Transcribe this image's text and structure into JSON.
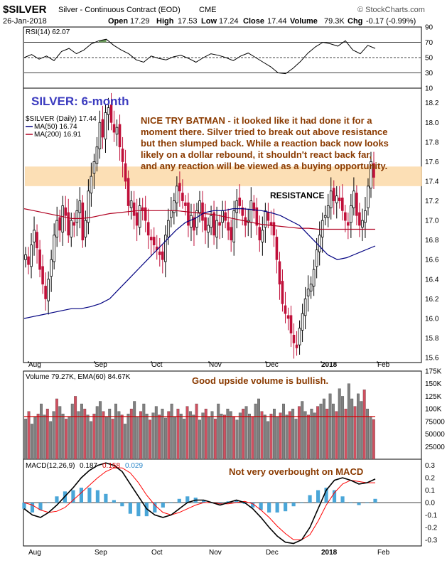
{
  "header": {
    "symbol": "$SILVER",
    "name": "Silver - Continuous Contract (EOD)",
    "exchange": "CME",
    "date": "26-Jan-2018",
    "open_label": "Open",
    "open": "17.29",
    "high_label": "High",
    "high": "17.53",
    "low_label": "Low",
    "low": "17.24",
    "close_label": "Close",
    "close": "17.44",
    "volume_label": "Volume",
    "volume": "79.3K",
    "chg_label": "Chg",
    "chg": "-0.17 (-0.99%)",
    "watermark": "© StockCharts.com"
  },
  "rsi_panel": {
    "label": "RSI(14) 62.07",
    "ticks": [
      "90",
      "70",
      "50",
      "30",
      "10"
    ]
  },
  "price_panel": {
    "big_title": "SILVER: 6-month",
    "legend_main": "$SILVER (Daily) 17.44",
    "legend_ma50": "MA(50) 16.74",
    "legend_ma200": "MA(200) 16.91",
    "annotation": [
      "NICE TRY BATMAN - it looked like it had done it for a",
      "moment there. Silver tried to break out above resistance",
      "but then slumped back. While a reaction back now looks",
      "likely on a dollar rebound, it shouldn't react back far,",
      "and any reaction will be viewed as a buying opportunity."
    ],
    "resistance_label": "RESISTANCE",
    "ticks": [
      "18.2",
      "18.0",
      "17.8",
      "17.6",
      "17.4",
      "17.2",
      "17.0",
      "16.8",
      "16.6",
      "16.4",
      "16.2",
      "16.0",
      "15.8",
      "15.6"
    ]
  },
  "volume_panel": {
    "label": "Volume 79.27K, EMA(60) 84.67K",
    "annotation": "Good upside volume is bullish.",
    "ticks": [
      "175K",
      "150K",
      "125K",
      "100K",
      "75000",
      "50000",
      "25000"
    ]
  },
  "macd_panel": {
    "label_prefix": "MACD(12,26,9)",
    "macd_value": "0.187",
    "signal_value": "0.158",
    "hist_value": "0.029",
    "annotation": "Not very overbought on MACD",
    "ticks": [
      "0.3",
      "0.2",
      "0.1",
      "0.0",
      "-0.1",
      "-0.2",
      "-0.3"
    ]
  },
  "x_axis": {
    "labels": [
      "Aug",
      "Sep",
      "Oct",
      "Nov",
      "Dec",
      "2018",
      "Feb"
    ]
  },
  "colors": {
    "up": "#ffffff",
    "down": "#c0103a",
    "ma50": "#000080",
    "ma200": "#b00020",
    "resistance": "#fbd9a8",
    "annotation": "#8a3a00",
    "title": "#3b3bbf",
    "vol_up": "#808080",
    "vol_down": "#d05060",
    "macd_hist": "#4aa6d8",
    "signal": "#ff0000"
  },
  "chart_data": [
    {
      "type": "candlestick",
      "title": "SILVER: 6-month",
      "x_range": [
        "2017-07-26",
        "2018-01-26"
      ],
      "ylim": [
        15.55,
        18.35
      ],
      "resistance_band": [
        17.35,
        17.55
      ],
      "close": [
        16.65,
        16.55,
        16.75,
        16.9,
        16.72,
        16.5,
        16.35,
        16.2,
        16.4,
        16.6,
        16.85,
        17.0,
        16.9,
        17.15,
        17.05,
        16.85,
        17.0,
        16.95,
        17.1,
        17.2,
        16.8,
        17.0,
        17.3,
        17.45,
        17.6,
        17.75,
        18.0,
        17.85,
        18.1,
        18.15,
        18.0,
        17.9,
        17.95,
        17.75,
        17.6,
        17.4,
        17.15,
        17.2,
        17.05,
        16.95,
        17.15,
        17.1,
        17.0,
        16.85,
        16.8,
        16.75,
        16.7,
        16.65,
        16.6,
        16.85,
        17.0,
        17.1,
        17.2,
        17.35,
        17.3,
        17.2,
        17.15,
        16.95,
        17.05,
        16.9,
        17.1,
        17.2,
        17.0,
        16.9,
        16.95,
        17.05,
        16.85,
        17.0,
        16.95,
        17.1,
        17.0,
        16.9,
        16.8,
        17.1,
        17.2,
        17.15,
        17.05,
        16.95,
        17.0,
        17.2,
        17.1,
        16.95,
        16.8,
        16.9,
        17.1,
        17.0,
        16.95,
        16.85,
        16.6,
        16.35,
        16.15,
        16.05,
        16.0,
        15.85,
        15.75,
        15.7,
        15.9,
        16.05,
        16.2,
        16.3,
        16.35,
        16.5,
        16.7,
        16.85,
        17.0,
        17.05,
        17.15,
        17.3,
        17.2,
        17.25,
        17.2,
        17.1,
        17.0,
        16.95,
        17.15,
        17.3,
        17.05,
        16.95,
        17.0,
        17.1,
        17.35,
        17.6,
        17.44
      ],
      "ma50": [
        16.0,
        16.02,
        16.04,
        16.06,
        16.08,
        16.1,
        16.1,
        16.12,
        16.15,
        16.2,
        16.3,
        16.4,
        16.5,
        16.6,
        16.7,
        16.8,
        16.9,
        16.98,
        17.02,
        17.08,
        17.1,
        17.1,
        17.12,
        17.12,
        17.11,
        17.1,
        17.08,
        17.05,
        17.0,
        16.95,
        16.85,
        16.75,
        16.65,
        16.6,
        16.62,
        16.66,
        16.7,
        16.74
      ],
      "ma200": [
        17.12,
        17.1,
        17.08,
        17.06,
        17.04,
        17.02,
        17.02,
        17.03,
        17.05,
        17.07,
        17.08,
        17.09,
        17.1,
        17.1,
        17.1,
        17.1,
        17.1,
        17.09,
        17.08,
        17.07,
        17.06,
        17.04,
        17.02,
        17.0,
        16.98,
        16.96,
        16.95,
        16.94,
        16.93,
        16.92,
        16.92,
        16.91,
        16.91,
        16.91,
        16.91,
        16.91,
        16.91,
        16.91
      ]
    },
    {
      "type": "line",
      "name": "RSI(14)",
      "ylim": [
        10,
        90
      ],
      "reference_lines": [
        70,
        50,
        30
      ],
      "values": [
        50,
        54,
        48,
        52,
        46,
        58,
        62,
        55,
        60,
        68,
        72,
        74,
        66,
        60,
        55,
        47,
        44,
        52,
        49,
        47,
        51,
        53,
        49,
        44,
        50,
        55,
        53,
        50,
        46,
        52,
        56,
        50,
        44,
        38,
        30,
        29,
        36,
        45,
        56,
        64,
        70,
        68,
        65,
        72,
        60,
        55,
        66,
        62
      ]
    },
    {
      "type": "bar",
      "name": "Volume",
      "ylim": [
        0,
        175000
      ],
      "ema60": 84670,
      "values": [
        80,
        95,
        70,
        85,
        90,
        110,
        88,
        100,
        75,
        95,
        120,
        105,
        90,
        80,
        85,
        110,
        125,
        95,
        110,
        100,
        88,
        75,
        90,
        105,
        115,
        95,
        85,
        100,
        80,
        110,
        95,
        88,
        70,
        90,
        100,
        115,
        85,
        95,
        110,
        90,
        78,
        92,
        105,
        88,
        100,
        82,
        95,
        110,
        85,
        100,
        90,
        80,
        105,
        95,
        88,
        110,
        78,
        92,
        100,
        85,
        95,
        80,
        110,
        90,
        88,
        100,
        95,
        85,
        78,
        92,
        100,
        105,
        90,
        85,
        110,
        120,
        95,
        88,
        75,
        90,
        100,
        85,
        92,
        110,
        88,
        95,
        100,
        80,
        105,
        115,
        95,
        88,
        100,
        92,
        105,
        110,
        120,
        100,
        130,
        110,
        95,
        140,
        125,
        100,
        150,
        120,
        105,
        130,
        115,
        138,
        100,
        85,
        79
      ]
    },
    {
      "type": "line",
      "name": "MACD(12,26,9)",
      "ylim": [
        -0.35,
        0.35
      ],
      "macd": [
        -0.05,
        -0.1,
        -0.12,
        -0.08,
        -0.02,
        0.05,
        0.12,
        0.2,
        0.26,
        0.3,
        0.32,
        0.3,
        0.25,
        0.15,
        0.05,
        -0.05,
        -0.1,
        -0.12,
        -0.1,
        -0.05,
        0.0,
        0.02,
        0.02,
        0.0,
        -0.02,
        0.0,
        0.02,
        0.0,
        -0.05,
        -0.12,
        -0.2,
        -0.27,
        -0.32,
        -0.33,
        -0.3,
        -0.2,
        -0.05,
        0.1,
        0.18,
        0.2,
        0.18,
        0.15,
        0.16,
        0.19
      ],
      "signal": [
        0.0,
        -0.02,
        -0.06,
        -0.08,
        -0.07,
        -0.04,
        0.02,
        0.08,
        0.14,
        0.2,
        0.25,
        0.28,
        0.28,
        0.24,
        0.16,
        0.06,
        -0.02,
        -0.08,
        -0.1,
        -0.08,
        -0.05,
        -0.02,
        0.0,
        0.0,
        -0.01,
        -0.01,
        0.0,
        0.01,
        -0.01,
        -0.06,
        -0.12,
        -0.19,
        -0.25,
        -0.3,
        -0.3,
        -0.26,
        -0.15,
        -0.02,
        0.08,
        0.15,
        0.18,
        0.17,
        0.16,
        0.16
      ]
    }
  ]
}
